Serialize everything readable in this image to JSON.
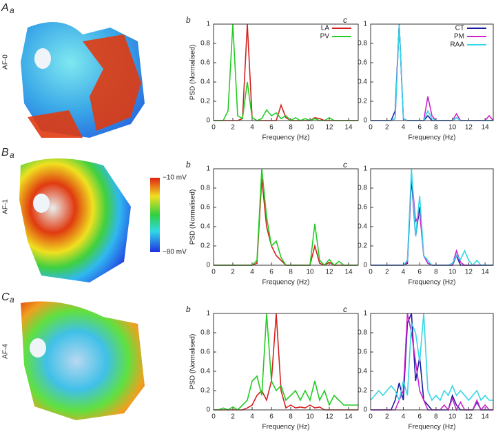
{
  "rows": [
    {
      "letter": "A",
      "sub": "a",
      "condition": "AF-0"
    },
    {
      "letter": "B",
      "sub": "a",
      "condition": "AF-1"
    },
    {
      "letter": "C",
      "sub": "a",
      "condition": "AF-4"
    }
  ],
  "colorbar": {
    "max_label": "−10 mV",
    "min_label": "−80 mV"
  },
  "chart_data": [
    {
      "type": "line",
      "panel_label": "b",
      "ylabel": "PSD (Normalised)",
      "xlabel": "Frequency (Hz)",
      "xlim": [
        0,
        15
      ],
      "ylim": [
        0,
        1
      ],
      "xticks": [
        0,
        2,
        4,
        6,
        8,
        10,
        12,
        14
      ],
      "yticks": [
        0,
        0.2,
        0.4,
        0.6,
        0.8,
        1
      ],
      "legend": "upper right",
      "x": [
        0,
        0.5,
        1,
        1.5,
        2,
        2.5,
        3,
        3.5,
        4,
        4.5,
        5,
        5.5,
        6,
        6.5,
        7,
        7.5,
        8,
        8.5,
        9,
        9.5,
        10,
        10.5,
        11,
        11.5,
        12,
        12.5,
        13,
        13.5,
        14,
        14.5,
        15
      ],
      "series": [
        {
          "name": "LA",
          "color": "#d42020",
          "values": [
            0,
            0,
            0,
            0,
            0,
            0,
            0.02,
            1,
            0.03,
            0,
            0,
            0,
            0,
            0,
            0.16,
            0.03,
            0,
            0,
            0,
            0,
            0,
            0.03,
            0.02,
            0,
            0,
            0,
            0,
            0,
            0,
            0,
            0
          ]
        },
        {
          "name": "PV",
          "color": "#22cc22",
          "values": [
            0,
            0,
            0,
            0.1,
            1,
            0.05,
            0.02,
            0.4,
            0.03,
            0,
            0.02,
            0.11,
            0.05,
            0.08,
            0.02,
            0.05,
            0,
            0.03,
            0,
            0.02,
            0,
            0.02,
            0,
            0,
            0.03,
            0,
            0,
            0,
            0,
            0,
            0
          ]
        }
      ]
    },
    {
      "type": "line",
      "panel_label": "c",
      "xlabel": "Frequency (Hz)",
      "xlim": [
        0,
        15
      ],
      "ylim": [
        0,
        1
      ],
      "xticks": [
        0,
        2,
        4,
        6,
        8,
        10,
        12,
        14
      ],
      "yticks": [
        0,
        0.2,
        0.4,
        0.6,
        0.8,
        1
      ],
      "legend": "upper right",
      "x": [
        0,
        0.5,
        1,
        1.5,
        2,
        2.5,
        3,
        3.5,
        4,
        4.5,
        5,
        5.5,
        6,
        6.5,
        7,
        7.5,
        8,
        8.5,
        9,
        9.5,
        10,
        10.5,
        11,
        11.5,
        12,
        12.5,
        13,
        13.5,
        14,
        14.5,
        15
      ],
      "series": [
        {
          "name": "CT",
          "color": "#1a1aa0",
          "values": [
            0,
            0,
            0,
            0,
            0,
            0,
            0.1,
            1,
            0.02,
            0,
            0,
            0,
            0,
            0,
            0.05,
            0,
            0,
            0,
            0,
            0,
            0,
            0.03,
            0,
            0,
            0,
            0,
            0,
            0,
            0,
            0,
            0
          ]
        },
        {
          "name": "PM",
          "color": "#cc22cc",
          "values": [
            0,
            0,
            0,
            0,
            0,
            0,
            0.02,
            1,
            0.02,
            0,
            0,
            0,
            0,
            0,
            0.25,
            0.05,
            0,
            0,
            0,
            0,
            0,
            0.07,
            0,
            0,
            0,
            0,
            0,
            0,
            0,
            0.05,
            0
          ]
        },
        {
          "name": "RAA",
          "color": "#33d6e6",
          "values": [
            0,
            0,
            0,
            0,
            0,
            0,
            0.02,
            1,
            0.02,
            0,
            0,
            0,
            0,
            0,
            0.1,
            0.02,
            0,
            0,
            0,
            0,
            0,
            0.03,
            0,
            0,
            0,
            0,
            0,
            0,
            0,
            0,
            0
          ]
        }
      ]
    },
    {
      "type": "line",
      "panel_label": "b",
      "ylabel": "PSD (Normalised)",
      "xlabel": "Frequency (Hz)",
      "xlim": [
        0,
        15
      ],
      "ylim": [
        0,
        1
      ],
      "xticks": [
        0,
        2,
        4,
        6,
        8,
        10,
        12,
        14
      ],
      "yticks": [
        0,
        0.2,
        0.4,
        0.6,
        0.8,
        1
      ],
      "x": [
        0,
        0.5,
        1,
        1.5,
        2,
        2.5,
        3,
        3.5,
        4,
        4.5,
        5,
        5.5,
        6,
        6.5,
        7,
        7.5,
        8,
        8.5,
        9,
        9.5,
        10,
        10.5,
        11,
        11.5,
        12,
        12.5,
        13,
        13.5,
        14,
        14.5,
        15
      ],
      "series": [
        {
          "color": "#d42020",
          "values": [
            0,
            0,
            0,
            0,
            0,
            0,
            0,
            0,
            0,
            0.02,
            0.9,
            0.4,
            0.2,
            0.1,
            0.05,
            0,
            0,
            0,
            0,
            0,
            0,
            0.2,
            0.02,
            0,
            0.03,
            0,
            0,
            0,
            0,
            0,
            0
          ]
        },
        {
          "color": "#22cc22",
          "values": [
            0,
            0,
            0,
            0,
            0,
            0,
            0,
            0,
            0,
            0.05,
            1,
            0.5,
            0.2,
            0.25,
            0.08,
            0,
            0,
            0,
            0,
            0,
            0,
            0.43,
            0.05,
            0,
            0.06,
            0,
            0.04,
            0,
            0,
            0,
            0
          ]
        }
      ]
    },
    {
      "type": "line",
      "panel_label": "c",
      "xlabel": "Frequency (Hz)",
      "xlim": [
        0,
        15
      ],
      "ylim": [
        0,
        1
      ],
      "xticks": [
        0,
        2,
        4,
        6,
        8,
        10,
        12,
        14
      ],
      "yticks": [
        0,
        0.2,
        0.4,
        0.6,
        0.8,
        1
      ],
      "x": [
        0,
        0.5,
        1,
        1.5,
        2,
        2.5,
        3,
        3.5,
        4,
        4.5,
        5,
        5.5,
        6,
        6.5,
        7,
        7.5,
        8,
        8.5,
        9,
        9.5,
        10,
        10.5,
        11,
        11.5,
        12,
        12.5,
        13,
        13.5,
        14,
        14.5,
        15
      ],
      "series": [
        {
          "color": "#1a1aa0",
          "values": [
            0,
            0,
            0,
            0,
            0,
            0,
            0,
            0,
            0,
            0.02,
            0.9,
            0.3,
            0.6,
            0.1,
            0.02,
            0,
            0,
            0,
            0,
            0,
            0,
            0.1,
            0,
            0,
            0,
            0,
            0,
            0,
            0,
            0,
            0
          ]
        },
        {
          "color": "#cc22cc",
          "values": [
            0,
            0,
            0,
            0,
            0,
            0,
            0,
            0,
            0,
            0.03,
            0.95,
            0.45,
            0.55,
            0.1,
            0.02,
            0,
            0,
            0,
            0,
            0,
            0,
            0.15,
            0.03,
            0,
            0,
            0,
            0,
            0,
            0,
            0,
            0
          ]
        },
        {
          "color": "#33d6e6",
          "values": [
            0,
            0,
            0,
            0,
            0,
            0,
            0,
            0,
            0,
            0.05,
            1,
            0.3,
            0.72,
            0.1,
            0.05,
            0,
            0,
            0,
            0,
            0,
            0.02,
            0.1,
            0.06,
            0.15,
            0.05,
            0,
            0.05,
            0,
            0,
            0,
            0
          ]
        }
      ]
    },
    {
      "type": "line",
      "panel_label": "b",
      "ylabel": "PSD (Normalised)",
      "xlabel": "Frequency (Hz)",
      "xlim": [
        0,
        15
      ],
      "ylim": [
        0,
        1
      ],
      "xticks": [
        0,
        2,
        4,
        6,
        8,
        10,
        12,
        14
      ],
      "yticks": [
        0,
        0.2,
        0.4,
        0.6,
        0.8,
        1
      ],
      "x": [
        0,
        0.5,
        1,
        1.5,
        2,
        2.5,
        3,
        3.5,
        4,
        4.5,
        5,
        5.5,
        6,
        6.5,
        7,
        7.5,
        8,
        8.5,
        9,
        9.5,
        10,
        10.5,
        11,
        11.5,
        12,
        12.5,
        13,
        13.5,
        14,
        14.5,
        15
      ],
      "series": [
        {
          "color": "#d42020",
          "values": [
            0,
            0,
            0,
            0,
            0,
            0,
            0,
            0.02,
            0.05,
            0.15,
            0.2,
            0.1,
            0.3,
            1,
            0.2,
            0.02,
            0.05,
            0.02,
            0.03,
            0.02,
            0.05,
            0.02,
            0.03,
            0,
            0,
            0,
            0,
            0,
            0,
            0,
            0
          ]
        },
        {
          "color": "#22cc22",
          "values": [
            0,
            0,
            0.02,
            0,
            0.03,
            0,
            0.05,
            0.1,
            0.3,
            0.35,
            0.15,
            1,
            0.3,
            0.2,
            0.25,
            0.1,
            0.15,
            0.2,
            0.1,
            0.2,
            0.1,
            0.3,
            0.1,
            0.2,
            0.05,
            0.15,
            0.1,
            0.05,
            0.05,
            0.05,
            0.05
          ]
        }
      ]
    },
    {
      "type": "line",
      "panel_label": "c",
      "xlabel": "Frequency (Hz)",
      "xlim": [
        0,
        15
      ],
      "ylim": [
        0,
        1
      ],
      "xticks": [
        0,
        2,
        4,
        6,
        8,
        10,
        12,
        14
      ],
      "yticks": [
        0,
        0.2,
        0.4,
        0.6,
        0.8,
        1
      ],
      "x": [
        0,
        0.5,
        1,
        1.5,
        2,
        2.5,
        3,
        3.5,
        4,
        4.5,
        5,
        5.5,
        6,
        6.5,
        7,
        7.5,
        8,
        8.5,
        9,
        9.5,
        10,
        10.5,
        11,
        11.5,
        12,
        12.5,
        13,
        13.5,
        14,
        14.5,
        15
      ],
      "series": [
        {
          "color": "#1a1aa0",
          "values": [
            0,
            0,
            0,
            0,
            0,
            0,
            0.1,
            0.28,
            0.1,
            0.9,
            1,
            0.3,
            0.55,
            0.1,
            0.05,
            0,
            0,
            0,
            0,
            0,
            0.15,
            0.05,
            0,
            0,
            0,
            0,
            0.08,
            0,
            0,
            0,
            0
          ]
        },
        {
          "color": "#cc22cc",
          "values": [
            0,
            0,
            0,
            0,
            0,
            0,
            0,
            0.1,
            0.2,
            1,
            0.8,
            0.5,
            0.2,
            0.1,
            0,
            0,
            0,
            0,
            0.05,
            0,
            0.12,
            0,
            0.08,
            0,
            0,
            0,
            0.1,
            0,
            0.05,
            0,
            0
          ]
        },
        {
          "color": "#33d6e6",
          "values": [
            0.1,
            0.15,
            0.2,
            0.15,
            0.2,
            0.25,
            0.2,
            0.1,
            0.3,
            0.15,
            0.9,
            0.8,
            0.5,
            1,
            0.2,
            0.1,
            0.15,
            0.1,
            0.2,
            0.15,
            0.25,
            0.15,
            0.2,
            0.15,
            0.1,
            0.15,
            0.2,
            0.1,
            0.15,
            0.1,
            0.1
          ]
        }
      ]
    }
  ]
}
